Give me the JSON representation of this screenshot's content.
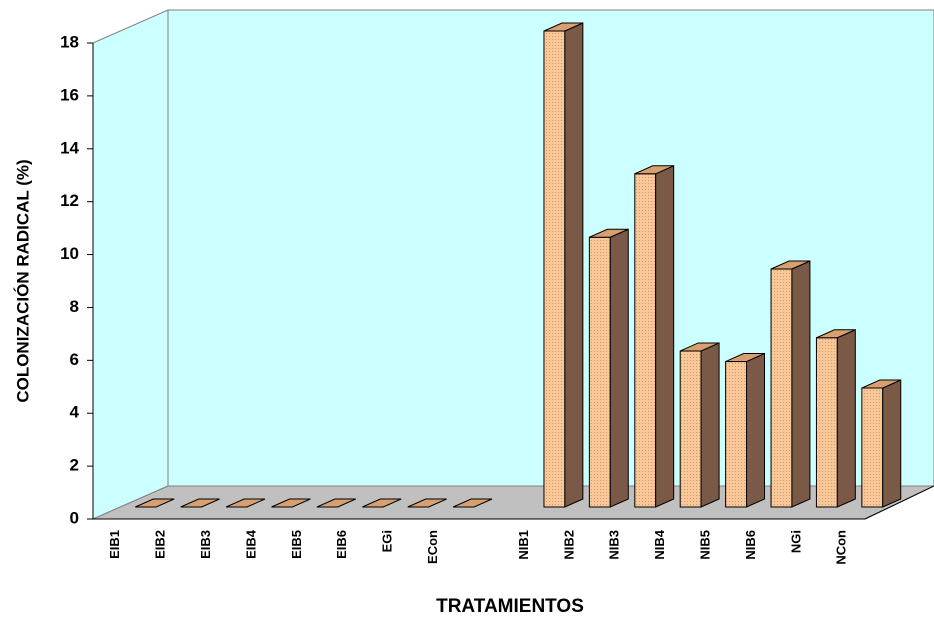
{
  "chart_data": {
    "type": "bar",
    "x_label": "TRATAMIENTOS",
    "y_label": "COLONIZACIÓN  RADICAL  (%)",
    "categories": [
      "EIB1",
      "EIB2",
      "EIB3",
      "EIB4",
      "EIB5",
      "EIB6",
      "EGi",
      "ECon",
      null,
      "NIB1",
      "NIB2",
      "NIB3",
      "NIB4",
      "NIB5",
      "NIB6",
      "NGi",
      "NCon"
    ],
    "values": [
      0,
      0,
      0,
      0,
      0,
      0,
      0,
      0,
      null,
      18,
      10.2,
      12.6,
      5.9,
      5.5,
      9,
      6.4,
      4.5
    ],
    "color": "#f8c898",
    "ylim": [
      0,
      18
    ],
    "yticks": [
      0,
      2,
      4,
      6,
      8,
      10,
      12,
      14,
      16,
      18
    ],
    "grid": false
  }
}
